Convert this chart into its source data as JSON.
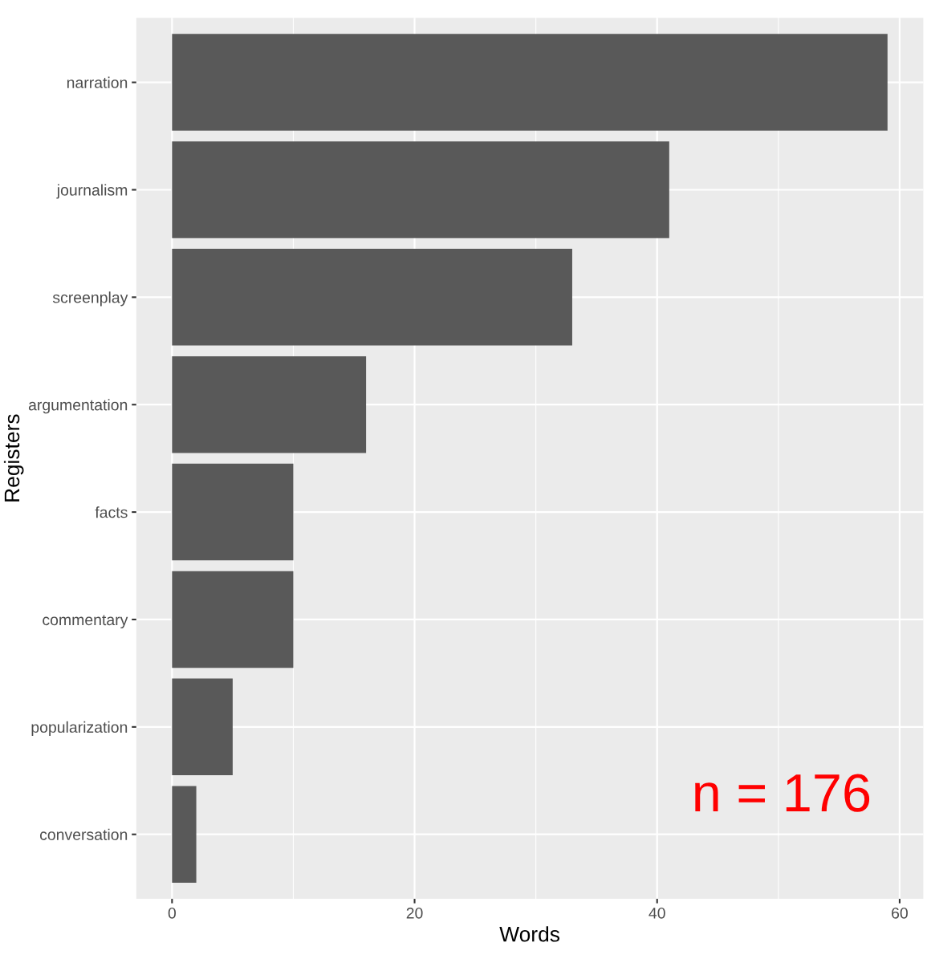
{
  "chart_data": {
    "type": "bar",
    "orientation": "horizontal",
    "categories": [
      "narration",
      "journalism",
      "screenplay",
      "argumentation",
      "facts",
      "commentary",
      "popularization",
      "conversation"
    ],
    "values": [
      59,
      41,
      33,
      16,
      10,
      10,
      5,
      2
    ],
    "color": "#595959",
    "xlabel": "Words",
    "ylabel": "Registers",
    "xlim": [
      -2.95,
      61.95
    ],
    "xticks": [
      0,
      20,
      40,
      60
    ],
    "grid": true,
    "annotations": [
      "n = 176"
    ]
  }
}
